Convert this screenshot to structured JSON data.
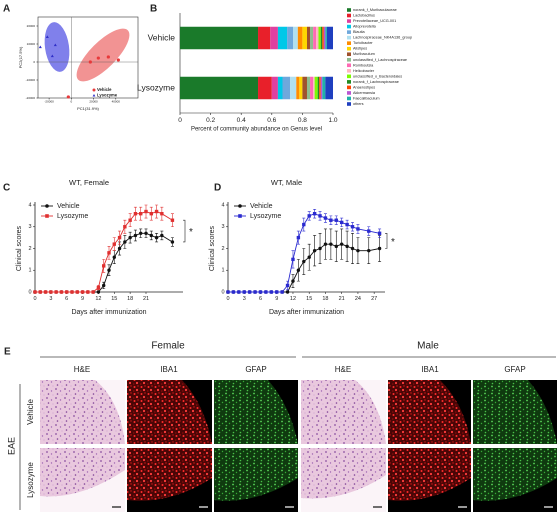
{
  "chart_data": [
    {
      "panel": "A",
      "type": "scatter",
      "xlabel": "PC1(31.9%)",
      "ylabel": "PC2(17.5%)",
      "xlim": [
        -30000,
        60000
      ],
      "xticks": [
        -20000,
        0,
        20000,
        40000
      ],
      "ylim": [
        -20000,
        25000
      ],
      "yticks": [
        -20000,
        -10000,
        0,
        10000,
        20000
      ],
      "legend": "lower right",
      "series": [
        {
          "name": "Vehicle",
          "color": "#e8393a",
          "marker": "circle",
          "x": [
            -2700,
            17100,
            24300,
            33300,
            42300
          ],
          "values": [
            -19400,
            0,
            2200,
            2800,
            1100
          ]
        },
        {
          "name": "Lysozyme",
          "color": "#2f2fc8",
          "marker": "triangle",
          "x": [
            -27900,
            -21600,
            -17100,
            -14400
          ],
          "values": [
            8300,
            13900,
            3300,
            9400
          ]
        }
      ]
    },
    {
      "panel": "B",
      "type": "bar",
      "orientation": "horizontal",
      "stacked": true,
      "xlabel": "Percent of community abundance on Genus level",
      "categories": [
        "Vehicle",
        "Lysozyme"
      ],
      "xlim": [
        0,
        1
      ],
      "xticks": [
        0,
        0.2,
        0.4,
        0.6,
        0.8,
        {
          "value": 1,
          "label": "1.0"
        }
      ],
      "legend": "right",
      "series": [
        {
          "name": "norank_f_Muribaculaceae",
          "color": "#1a7a2a",
          "values": [
            0.51,
            0.51
          ]
        },
        {
          "name": "Lactobacillus",
          "color": "#e8202a",
          "values": [
            0.08,
            0.09
          ]
        },
        {
          "name": "Prevotellaceae_UCG-001",
          "color": "#e040a0",
          "values": [
            0.05,
            0.04
          ]
        },
        {
          "name": "Alloprevotella",
          "color": "#00c8e8",
          "values": [
            0.06,
            0.03
          ]
        },
        {
          "name": "Blautia",
          "color": "#6fa8dc",
          "values": [
            0.04,
            0.05
          ]
        },
        {
          "name": "Lachnospiraceae_NK4A136_group",
          "color": "#b0e0f0",
          "values": [
            0.03,
            0.04
          ]
        },
        {
          "name": "Turicibacter",
          "color": "#ff8c00",
          "values": [
            0.03,
            0.02
          ]
        },
        {
          "name": "Alistipes",
          "color": "#ffd700",
          "values": [
            0.03,
            0.02
          ]
        },
        {
          "name": "Muribaculum",
          "color": "#a0522d",
          "values": [
            0.02,
            0.03
          ]
        },
        {
          "name": "unclassified_f_Lachnospiraceae",
          "color": "#8fbc8f",
          "values": [
            0.02,
            0.02
          ]
        },
        {
          "name": "Romboutsia",
          "color": "#ff69b4",
          "values": [
            0.02,
            0.02
          ]
        },
        {
          "name": "Helicobacter",
          "color": "#ffb6c1",
          "values": [
            0.015,
            0.01
          ]
        },
        {
          "name": "unclassified_o_Bacteroidales",
          "color": "#7cfc00",
          "values": [
            0.015,
            0.02
          ]
        },
        {
          "name": "norank_f_Lachnospiraceae",
          "color": "#228b22",
          "values": [
            0.01,
            0.01
          ]
        },
        {
          "name": "Anaerostipes",
          "color": "#ff4500",
          "values": [
            0.01,
            0.01
          ]
        },
        {
          "name": "Akkermansia",
          "color": "#ba55d3",
          "values": [
            0.01,
            0.01
          ]
        },
        {
          "name": "Faecalibaculum",
          "color": "#20b2aa",
          "values": [
            0.01,
            0.02
          ]
        },
        {
          "name": "others",
          "color": "#1f3fbf",
          "values": [
            0.04,
            0.05
          ]
        }
      ]
    },
    {
      "panel": "C",
      "type": "line",
      "title": "WT, Female",
      "xlabel": "Days after immunization",
      "ylabel": "Clinical scores",
      "x": [
        0,
        1,
        2,
        3,
        4,
        5,
        6,
        7,
        8,
        9,
        10,
        11,
        12,
        13,
        14,
        15,
        16,
        17,
        18,
        19,
        20,
        21,
        22,
        23,
        24,
        26
      ],
      "xlim": [
        0,
        28
      ],
      "xticks": [
        0,
        3,
        6,
        9,
        12,
        15,
        18,
        21
      ],
      "ylim": [
        0,
        4
      ],
      "yticks": [
        0,
        1,
        2,
        3,
        4
      ],
      "legend": "upper left",
      "annotation": "*",
      "series": [
        {
          "name": "Vehicle",
          "color": "#111111",
          "marker": "circle",
          "values": [
            0,
            0,
            0,
            0,
            0,
            0,
            0,
            0,
            0,
            0,
            0,
            0,
            0,
            0.3,
            1.0,
            1.6,
            2.0,
            2.3,
            2.5,
            2.6,
            2.7,
            2.7,
            2.6,
            2.5,
            2.6,
            2.3
          ],
          "errors": [
            0,
            0,
            0,
            0,
            0,
            0,
            0,
            0,
            0,
            0,
            0,
            0,
            0,
            0.15,
            0.25,
            0.3,
            0.3,
            0.3,
            0.25,
            0.25,
            0.2,
            0.2,
            0.2,
            0.2,
            0.2,
            0.2
          ]
        },
        {
          "name": "Lysozyme",
          "color": "#e03030",
          "marker": "square",
          "values": [
            0,
            0,
            0,
            0,
            0,
            0,
            0,
            0,
            0,
            0,
            0,
            0,
            0.2,
            1.2,
            1.8,
            2.2,
            2.5,
            3.0,
            3.3,
            3.6,
            3.6,
            3.7,
            3.6,
            3.7,
            3.6,
            3.3
          ],
          "errors": [
            0,
            0,
            0,
            0,
            0,
            0,
            0,
            0,
            0,
            0,
            0,
            0,
            0.1,
            0.3,
            0.3,
            0.3,
            0.3,
            0.3,
            0.3,
            0.3,
            0.3,
            0.3,
            0.3,
            0.3,
            0.3,
            0.3
          ]
        }
      ]
    },
    {
      "panel": "D",
      "type": "line",
      "title": "WT, Male",
      "xlabel": "Days after immunization",
      "ylabel": "Clinical scores",
      "x": [
        0,
        1,
        2,
        3,
        4,
        5,
        6,
        7,
        8,
        9,
        10,
        11,
        12,
        13,
        14,
        15,
        16,
        17,
        18,
        19,
        20,
        21,
        22,
        23,
        24,
        26,
        28
      ],
      "xlim": [
        0,
        29
      ],
      "xticks": [
        0,
        3,
        6,
        9,
        12,
        15,
        18,
        21,
        24,
        27
      ],
      "ylim": [
        0,
        4
      ],
      "yticks": [
        0,
        1,
        2,
        3,
        4
      ],
      "legend": "upper left",
      "annotation": "*",
      "series": [
        {
          "name": "Vehicle",
          "color": "#111111",
          "marker": "circle",
          "values": [
            0,
            0,
            0,
            0,
            0,
            0,
            0,
            0,
            0,
            0,
            0,
            0,
            0.5,
            1.0,
            1.4,
            1.6,
            1.9,
            2.0,
            2.2,
            2.2,
            2.1,
            2.2,
            2.1,
            2.0,
            1.9,
            1.9,
            2.0
          ],
          "errors": [
            0,
            0,
            0,
            0,
            0,
            0,
            0,
            0,
            0,
            0,
            0,
            0,
            0.3,
            0.5,
            0.6,
            0.6,
            0.7,
            0.7,
            0.7,
            0.7,
            0.7,
            0.7,
            0.7,
            0.7,
            0.6,
            0.6,
            0.6
          ]
        },
        {
          "name": "Lysozyme",
          "color": "#2a2ad0",
          "marker": "square",
          "values": [
            0,
            0,
            0,
            0,
            0,
            0,
            0,
            0,
            0,
            0,
            0,
            0.3,
            1.5,
            2.5,
            3.1,
            3.5,
            3.6,
            3.5,
            3.4,
            3.3,
            3.3,
            3.2,
            3.1,
            3.0,
            2.9,
            2.8,
            2.7
          ],
          "errors": [
            0,
            0,
            0,
            0,
            0,
            0,
            0,
            0,
            0,
            0,
            0,
            0.2,
            0.4,
            0.3,
            0.3,
            0.2,
            0.2,
            0.2,
            0.2,
            0.2,
            0.2,
            0.2,
            0.2,
            0.2,
            0.2,
            0.2,
            0.2
          ]
        }
      ]
    }
  ],
  "panel_e": {
    "panel": "E",
    "condition": "EAE",
    "rows": [
      "Vehicle",
      "Lysozyme"
    ],
    "groups": [
      {
        "name": "Female",
        "stains": [
          "H&E",
          "IBA1",
          "GFAP"
        ]
      },
      {
        "name": "Male",
        "stains": [
          "H&E",
          "IBA1",
          "GFAP"
        ]
      }
    ]
  }
}
